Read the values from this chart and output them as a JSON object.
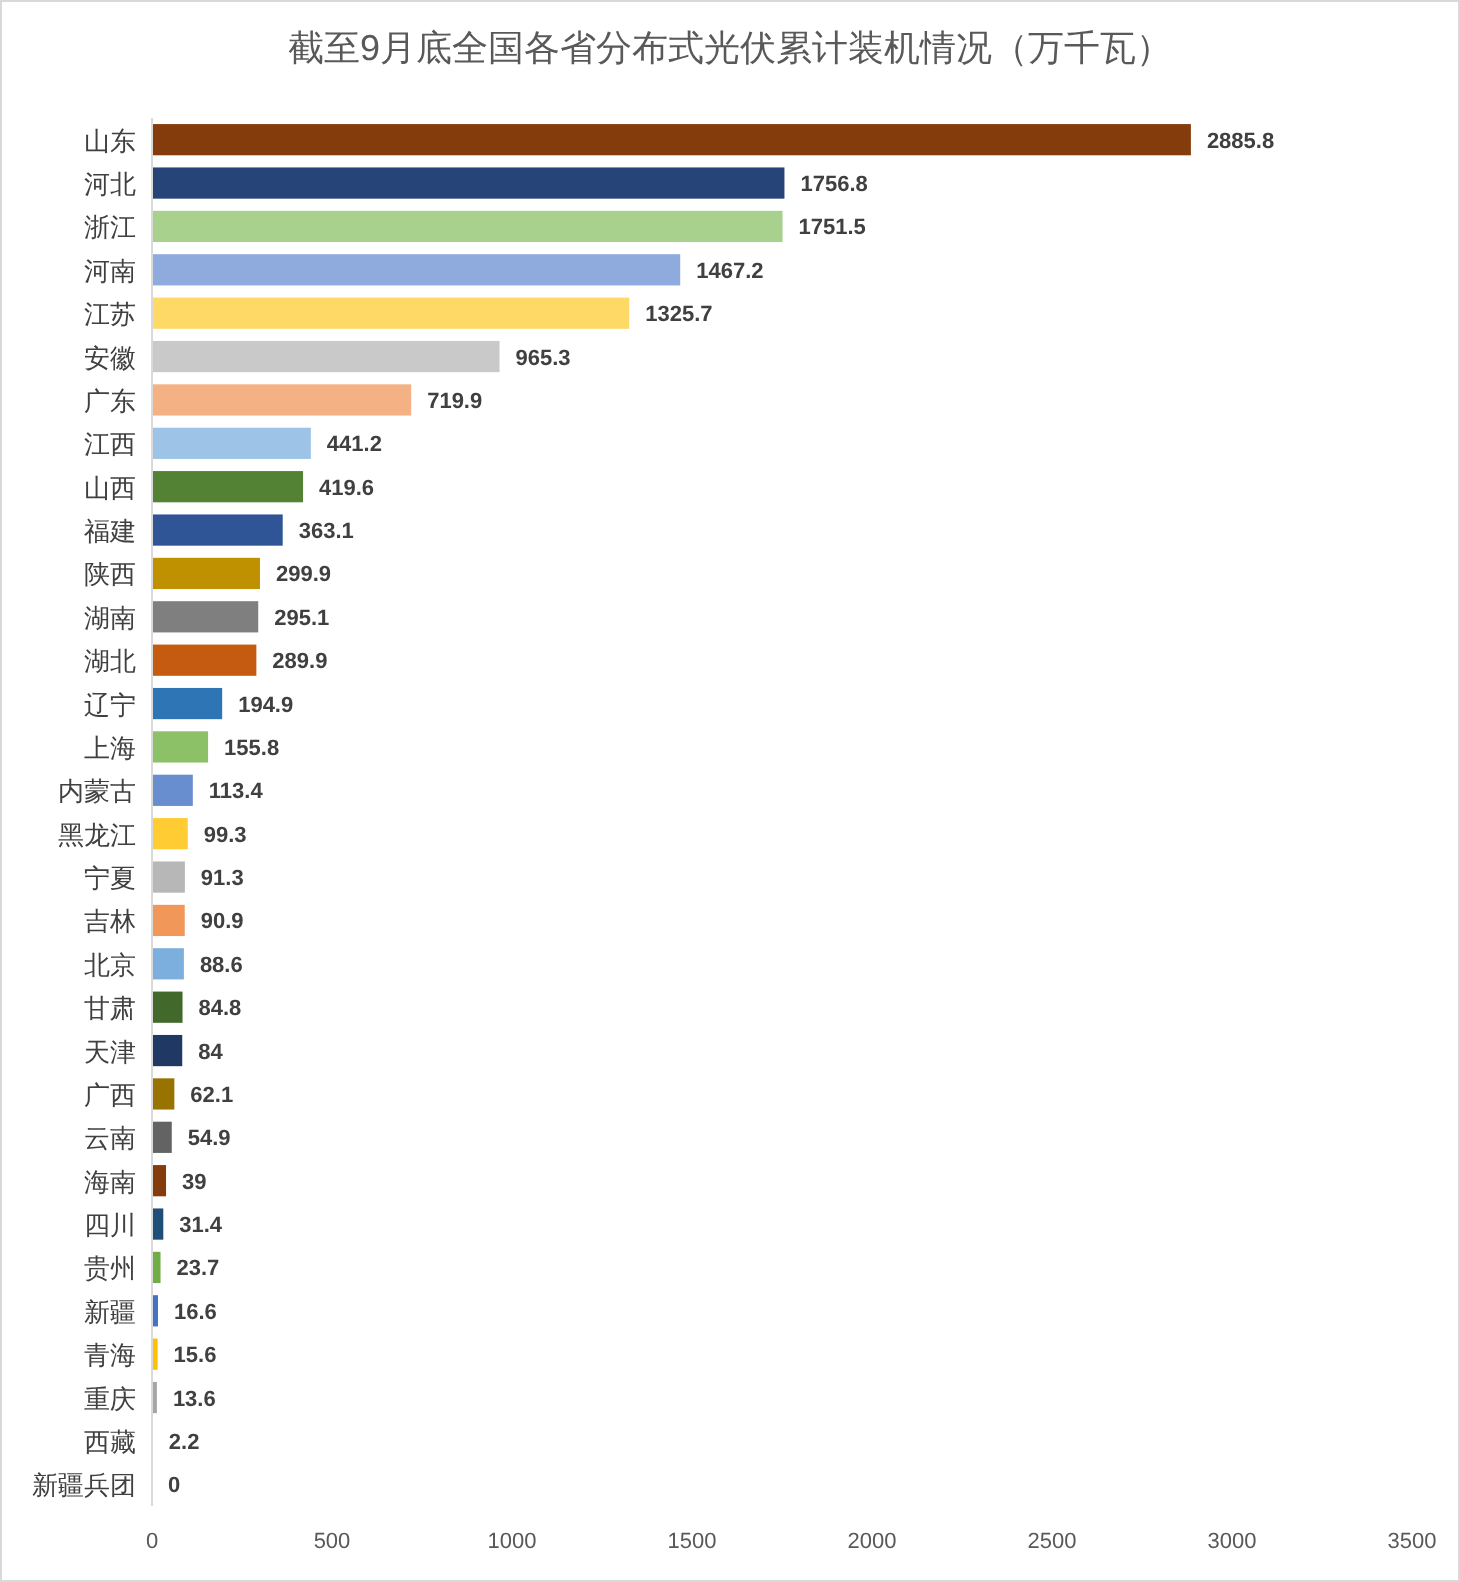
{
  "chart_data": {
    "type": "bar",
    "orientation": "horizontal",
    "title": "截至9月底全国各省分布式光伏累计装机情况（万千瓦）",
    "categories": [
      "山东",
      "河北",
      "浙江",
      "河南",
      "江苏",
      "安徽",
      "广东",
      "江西",
      "山西",
      "福建",
      "陕西",
      "湖南",
      "湖北",
      "辽宁",
      "上海",
      "内蒙古",
      "黑龙江",
      "宁夏",
      "吉林",
      "北京",
      "甘肃",
      "天津",
      "广西",
      "云南",
      "海南",
      "四川",
      "贵州",
      "新疆",
      "青海",
      "重庆",
      "西藏",
      "新疆兵团"
    ],
    "values": [
      2885.8,
      1756.8,
      1751.5,
      1467.2,
      1325.7,
      965.3,
      719.9,
      441.2,
      419.6,
      363.1,
      299.9,
      295.1,
      289.9,
      194.9,
      155.8,
      113.4,
      99.3,
      91.3,
      90.9,
      88.6,
      84.8,
      84,
      62.1,
      54.9,
      39,
      31.4,
      23.7,
      16.6,
      15.6,
      13.6,
      2.2,
      0
    ],
    "colors": [
      "#843c0c",
      "#264478",
      "#a9d18e",
      "#8faadc",
      "#ffd966",
      "#c9c9c9",
      "#f4b183",
      "#9dc3e6",
      "#548235",
      "#2f5597",
      "#bf9000",
      "#7f7f7f",
      "#c55a11",
      "#2e75b6",
      "#8cc168",
      "#698ed0",
      "#ffcd33",
      "#b7b7b7",
      "#f1975a",
      "#7cafdd",
      "#43682b",
      "#203864",
      "#997300",
      "#636363",
      "#843c0c",
      "#1f4e79",
      "#70ad47",
      "#4472c4",
      "#ffc000",
      "#a5a5a5",
      "#ed7d31",
      "#264478"
    ],
    "xlim": [
      0,
      3500
    ],
    "xticks": [
      0,
      500,
      1000,
      1500,
      2000,
      2500,
      3000,
      3500
    ],
    "data_labels": true,
    "grid": false
  }
}
